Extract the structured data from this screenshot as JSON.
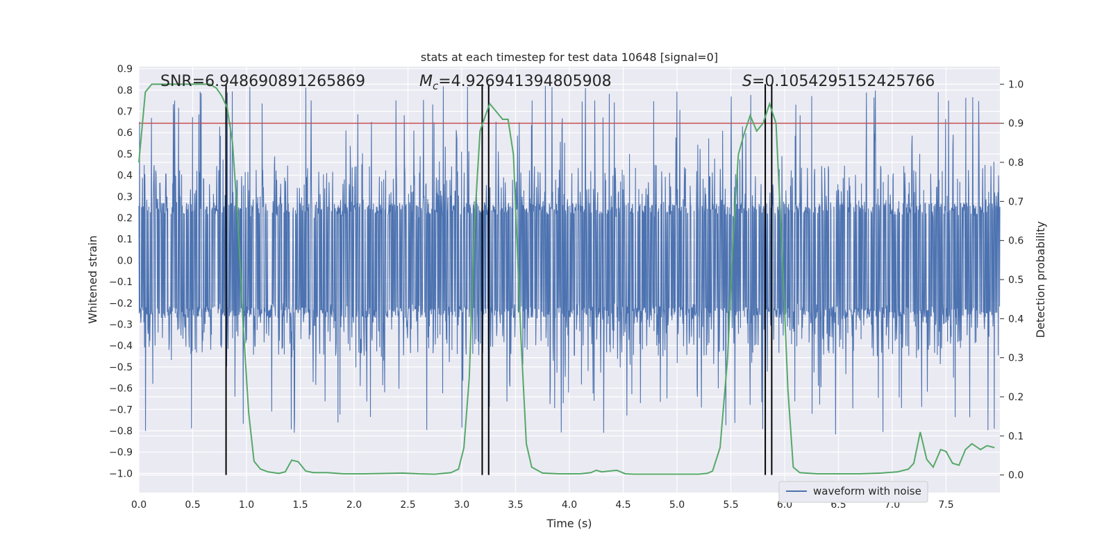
{
  "chart_data": {
    "type": "line",
    "title": "stats at each timestep for test data 10648 [signal=0]",
    "xlabel": "Time (s)",
    "ylabel": "Whitened strain",
    "ylabel_right": "Detection probability",
    "xlim": [
      0.0,
      8.0
    ],
    "ylim": [
      -1.09,
      0.91
    ],
    "ylim_right": [
      -0.045,
      1.045
    ],
    "xticks": [
      "0.0",
      "0.5",
      "1.0",
      "1.5",
      "2.0",
      "2.5",
      "3.0",
      "3.5",
      "4.0",
      "4.5",
      "5.0",
      "5.5",
      "6.0",
      "6.5",
      "7.0",
      "7.5"
    ],
    "yticks": [
      "0.9",
      "0.8",
      "0.7",
      "0.6",
      "0.5",
      "0.4",
      "0.3",
      "0.2",
      "0.1",
      "0.0",
      "−0.1",
      "−0.2",
      "−0.3",
      "−0.4",
      "−0.5",
      "−0.6",
      "−0.7",
      "−0.8",
      "−0.9",
      "−1.0"
    ],
    "yticks_right": [
      "1.0",
      "0.9",
      "0.8",
      "0.7",
      "0.6",
      "0.5",
      "0.4",
      "0.3",
      "0.2",
      "0.1",
      "0.0"
    ],
    "annotations": {
      "snr": "SNR=6.948690891265869",
      "mc_symbol": "M",
      "mc_sub": "c",
      "mc_value": "=4.926941394805908",
      "s_symbol": "S",
      "s_value": "=0.1054295152425766"
    },
    "legend": {
      "label": "waveform with noise",
      "position": "bottom-right"
    },
    "threshold_line": {
      "y_right": 0.9,
      "color": "#c44e52"
    },
    "vertical_lines": [
      0.81,
      3.19,
      3.25,
      5.82,
      5.88
    ],
    "noise_waveform": {
      "name": "waveform with noise",
      "color": "#4c72b0",
      "core_amplitude": 0.27,
      "max_amplitude": 0.82
    },
    "probability_series": {
      "name": "detection probability",
      "color": "#55a868",
      "x": [
        0.0,
        0.06,
        0.12,
        0.2,
        0.3,
        0.4,
        0.5,
        0.6,
        0.66,
        0.72,
        0.77,
        0.82,
        0.87,
        0.92,
        0.97,
        1.02,
        1.07,
        1.13,
        1.2,
        1.3,
        1.36,
        1.42,
        1.48,
        1.55,
        1.62,
        1.75,
        1.9,
        2.1,
        2.3,
        2.45,
        2.6,
        2.75,
        2.9,
        2.97,
        3.02,
        3.07,
        3.12,
        3.17,
        3.22,
        3.26,
        3.32,
        3.38,
        3.43,
        3.48,
        3.55,
        3.6,
        3.65,
        3.75,
        3.9,
        4.1,
        4.2,
        4.25,
        4.3,
        4.37,
        4.44,
        4.52,
        4.6,
        4.8,
        5.0,
        5.2,
        5.28,
        5.33,
        5.4,
        5.47,
        5.52,
        5.57,
        5.62,
        5.68,
        5.74,
        5.8,
        5.86,
        5.92,
        5.98,
        6.03,
        6.08,
        6.14,
        6.3,
        6.5,
        6.7,
        6.9,
        7.05,
        7.15,
        7.2,
        7.26,
        7.32,
        7.38,
        7.45,
        7.5,
        7.56,
        7.62,
        7.68,
        7.74,
        7.82,
        7.88,
        7.95
      ],
      "y": [
        0.8,
        0.98,
        1.0,
        1.0,
        1.0,
        1.0,
        1.0,
        1.0,
        1.0,
        0.99,
        0.97,
        0.94,
        0.85,
        0.65,
        0.38,
        0.16,
        0.035,
        0.015,
        0.008,
        0.004,
        0.008,
        0.038,
        0.034,
        0.01,
        0.006,
        0.006,
        0.003,
        0.003,
        0.004,
        0.005,
        0.003,
        0.002,
        0.006,
        0.015,
        0.07,
        0.25,
        0.65,
        0.88,
        0.92,
        0.95,
        0.93,
        0.91,
        0.91,
        0.82,
        0.35,
        0.08,
        0.02,
        0.005,
        0.003,
        0.003,
        0.006,
        0.012,
        0.008,
        0.01,
        0.012,
        0.003,
        0.002,
        0.002,
        0.002,
        0.002,
        0.004,
        0.01,
        0.07,
        0.3,
        0.6,
        0.82,
        0.87,
        0.92,
        0.88,
        0.9,
        0.95,
        0.9,
        0.55,
        0.22,
        0.02,
        0.006,
        0.003,
        0.003,
        0.003,
        0.005,
        0.008,
        0.015,
        0.03,
        0.11,
        0.04,
        0.02,
        0.065,
        0.06,
        0.03,
        0.025,
        0.065,
        0.08,
        0.065,
        0.075,
        0.07
      ]
    }
  }
}
